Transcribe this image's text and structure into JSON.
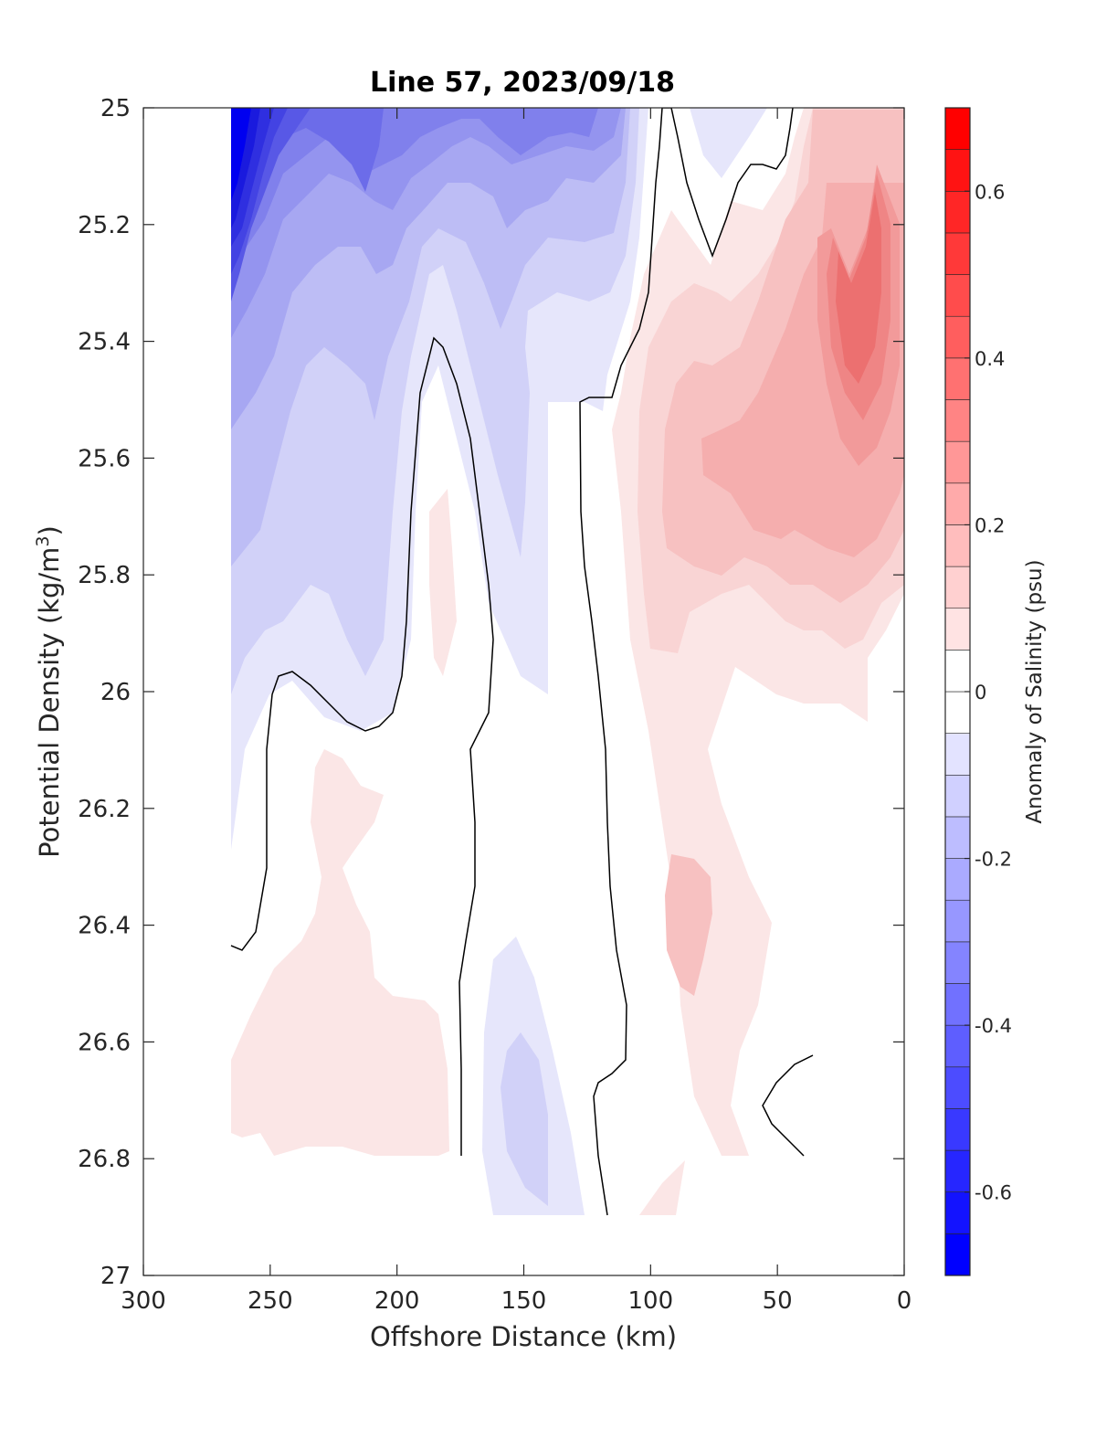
{
  "chart_data": {
    "type": "heatmap",
    "subtype": "filled-contour",
    "title": "Line 57, 2023/09/18",
    "xlabel": "Offshore Distance (km)",
    "ylabel_main": "Potential Density (kg/m",
    "ylabel_sup": "3",
    "ylabel_close": ")",
    "xlim": [
      300,
      0
    ],
    "ylim": [
      27,
      25
    ],
    "x_reversed": true,
    "y_reversed": true,
    "x_ticks": [
      300,
      250,
      200,
      150,
      100,
      50,
      0
    ],
    "y_ticks": [
      25,
      25.2,
      25.4,
      25.6,
      25.8,
      26,
      26.2,
      26.4,
      26.6,
      26.8,
      27
    ],
    "y_tick_labels": [
      "25",
      "25.2",
      "25.4",
      "25.6",
      "25.8",
      "26",
      "26.2",
      "26.4",
      "26.6",
      "26.8",
      "27"
    ],
    "colorbar": {
      "label": "Anomaly of Salinity (psu)",
      "range": [
        -0.7,
        0.7
      ],
      "step": 0.05,
      "ticks": [
        -0.6,
        -0.4,
        -0.2,
        0,
        0.2,
        0.4,
        0.6
      ],
      "tick_labels": [
        "-0.6",
        "-0.4",
        "-0.2",
        "0",
        "0.2",
        "0.4",
        "0.6"
      ],
      "colormap": "blue-white-red"
    },
    "zero_contour_label": "0",
    "approx_field_regions": [
      {
        "desc": "strong negative core",
        "x_range": [
          265,
          245
        ],
        "y_range": [
          25,
          25.6
        ],
        "value": -0.65
      },
      {
        "desc": "negative band",
        "x_range": [
          245,
          100
        ],
        "y_range": [
          25,
          26.0
        ],
        "value": -0.2
      },
      {
        "desc": "weak positive",
        "x_range": [
          265,
          180
        ],
        "y_range": [
          26.1,
          26.8
        ],
        "value": 0.05
      },
      {
        "desc": "negative tongue",
        "x_range": [
          165,
          125
        ],
        "y_range": [
          26.45,
          26.9
        ],
        "value": -0.1
      },
      {
        "desc": "positive band",
        "x_range": [
          100,
          40
        ],
        "y_range": [
          25.2,
          26.8
        ],
        "value": 0.15
      },
      {
        "desc": "strong positive core",
        "x_range": [
          35,
          5
        ],
        "y_range": [
          25.2,
          25.8
        ],
        "value": 0.45
      }
    ]
  }
}
